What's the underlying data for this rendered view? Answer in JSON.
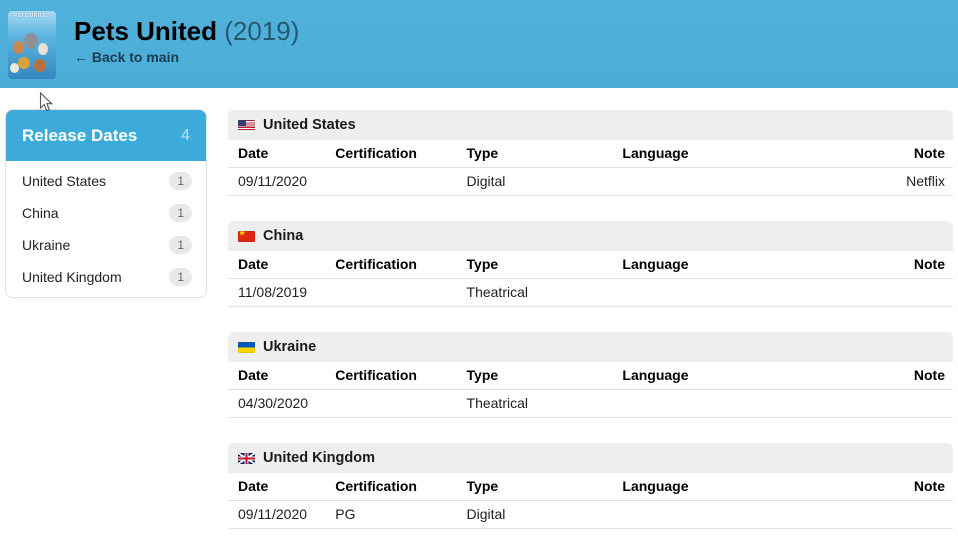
{
  "header": {
    "title": "Pets United",
    "year": "(2019)",
    "back_link": "← Back to main",
    "poster_text": "PETS UNITED"
  },
  "sidebar": {
    "title": "Release Dates",
    "total": "4",
    "items": [
      {
        "label": "United States",
        "count": "1"
      },
      {
        "label": "China",
        "count": "1"
      },
      {
        "label": "Ukraine",
        "count": "1"
      },
      {
        "label": "United Kingdom",
        "count": "1"
      }
    ]
  },
  "columns": [
    "Date",
    "Certification",
    "Type",
    "Language",
    "Note"
  ],
  "sections": [
    {
      "country": "United States",
      "flag_id": "us",
      "rows": [
        {
          "date": "09/11/2020",
          "certification": "",
          "type": "Digital",
          "language": "",
          "note": "Netflix"
        }
      ]
    },
    {
      "country": "China",
      "flag_id": "cn",
      "rows": [
        {
          "date": "11/08/2019",
          "certification": "",
          "type": "Theatrical",
          "language": "",
          "note": ""
        }
      ]
    },
    {
      "country": "Ukraine",
      "flag_id": "ua",
      "rows": [
        {
          "date": "04/30/2020",
          "certification": "",
          "type": "Theatrical",
          "language": "",
          "note": ""
        }
      ]
    },
    {
      "country": "United Kingdom",
      "flag_id": "gb",
      "rows": [
        {
          "date": "09/11/2020",
          "certification": "PG",
          "type": "Digital",
          "language": "",
          "note": ""
        }
      ]
    }
  ],
  "colors": {
    "header_blue": "#4fb0da",
    "accent_blue": "#3cabdb",
    "section_header_gray": "#eeeeee",
    "badge_gray": "#e9e9e9",
    "border_gray": "#e3e3e3"
  }
}
